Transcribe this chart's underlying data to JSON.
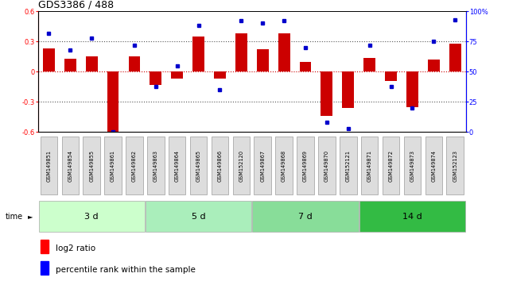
{
  "title": "GDS3386 / 488",
  "samples": [
    "GSM149851",
    "GSM149854",
    "GSM149855",
    "GSM149861",
    "GSM149862",
    "GSM149863",
    "GSM149864",
    "GSM149865",
    "GSM149866",
    "GSM152120",
    "GSM149867",
    "GSM149868",
    "GSM149869",
    "GSM149870",
    "GSM152121",
    "GSM149871",
    "GSM149872",
    "GSM149873",
    "GSM149874",
    "GSM152123"
  ],
  "log2_ratio": [
    0.23,
    0.13,
    0.15,
    -0.62,
    0.15,
    -0.13,
    -0.07,
    0.35,
    -0.07,
    0.38,
    0.22,
    0.38,
    0.1,
    -0.44,
    -0.36,
    0.14,
    -0.09,
    -0.35,
    0.12,
    0.28
  ],
  "percentile_rank": [
    82,
    68,
    78,
    0.5,
    72,
    38,
    55,
    88,
    35,
    92,
    90,
    92,
    70,
    8,
    3,
    72,
    38,
    20,
    75,
    93
  ],
  "groups": [
    {
      "label": "3 d",
      "start": 0,
      "end": 5,
      "color": "#ccffcc"
    },
    {
      "label": "5 d",
      "start": 5,
      "end": 10,
      "color": "#aaeebb"
    },
    {
      "label": "7 d",
      "start": 10,
      "end": 15,
      "color": "#88dd99"
    },
    {
      "label": "14 d",
      "start": 15,
      "end": 20,
      "color": "#33bb44"
    }
  ],
  "ylim_left": [
    -0.6,
    0.6
  ],
  "ylim_right": [
    0,
    100
  ],
  "bar_color": "#cc0000",
  "dot_color": "#0000cc",
  "zero_line_color": "#cc0000",
  "dotted_line_color": "#555555",
  "bg_color": "#ffffff",
  "title_fontsize": 9,
  "tick_fontsize": 6,
  "legend_fontsize": 7.5,
  "sample_box_color": "#cccccc",
  "sample_text_color": "#000000"
}
